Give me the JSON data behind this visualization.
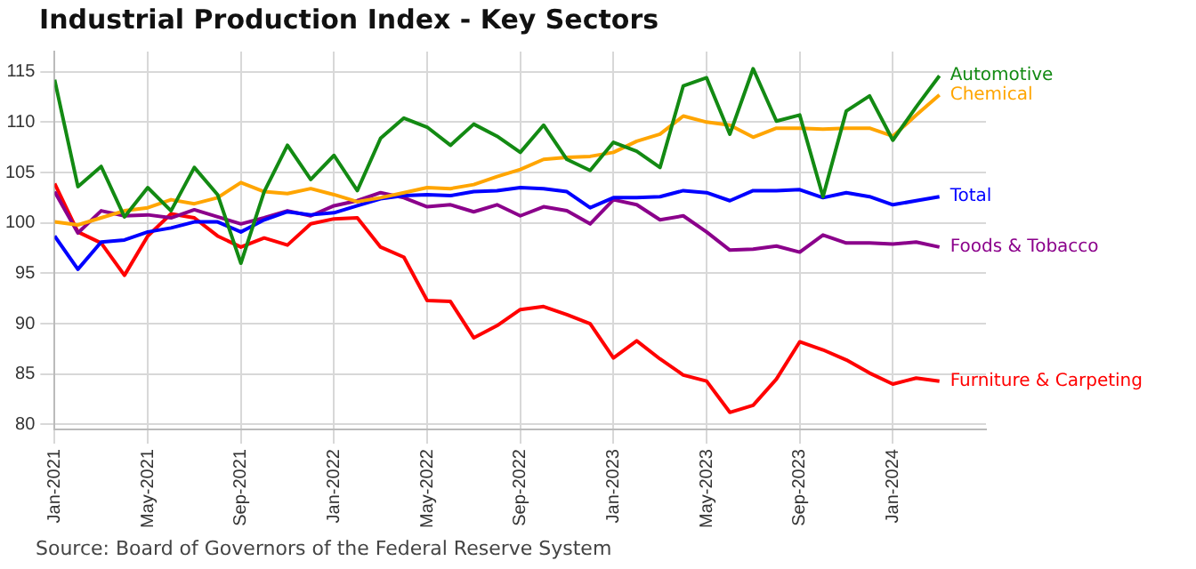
{
  "chart_data": {
    "type": "line",
    "title": "Industrial Production Index - Key Sectors",
    "x": [
      "2021-01",
      "2021-02",
      "2021-03",
      "2021-04",
      "2021-05",
      "2021-06",
      "2021-07",
      "2021-08",
      "2021-09",
      "2021-10",
      "2021-11",
      "2021-12",
      "2022-01",
      "2022-02",
      "2022-03",
      "2022-04",
      "2022-05",
      "2022-06",
      "2022-07",
      "2022-08",
      "2022-09",
      "2022-10",
      "2022-11",
      "2022-12",
      "2023-01",
      "2023-02",
      "2023-03",
      "2023-04",
      "2023-05",
      "2023-06",
      "2023-07",
      "2023-08",
      "2023-09",
      "2023-10",
      "2023-11",
      "2023-12",
      "2024-01",
      "2024-02",
      "2024-03"
    ],
    "series": [
      {
        "name": "Automotive",
        "color": "#138a13",
        "values": [
          114.2,
          103.6,
          105.6,
          100.6,
          103.5,
          101.2,
          105.5,
          102.8,
          96.0,
          103.1,
          107.7,
          104.3,
          106.7,
          103.2,
          108.4,
          110.4,
          109.5,
          107.7,
          109.8,
          108.6,
          107.0,
          109.7,
          106.3,
          105.2,
          108.0,
          107.1,
          105.5,
          113.6,
          114.4,
          108.8,
          115.3,
          110.1,
          110.7,
          102.6,
          111.1,
          112.6,
          108.2,
          111.5,
          114.6
        ]
      },
      {
        "name": "Chemical",
        "color": "#ffa500",
        "values": [
          100.1,
          99.8,
          100.5,
          101.2,
          101.5,
          102.3,
          101.9,
          102.5,
          104.0,
          103.1,
          102.9,
          103.4,
          102.8,
          102.1,
          102.5,
          103.0,
          103.5,
          103.4,
          103.8,
          104.6,
          105.3,
          106.3,
          106.5,
          106.6,
          107.0,
          108.1,
          108.8,
          110.6,
          110.0,
          109.7,
          108.5,
          109.4,
          109.4,
          109.3,
          109.4,
          109.4,
          108.6,
          110.7,
          112.7
        ]
      },
      {
        "name": "Total",
        "color": "#0000ff",
        "values": [
          98.7,
          95.4,
          98.1,
          98.3,
          99.1,
          99.5,
          100.1,
          100.1,
          99.1,
          100.3,
          101.1,
          100.8,
          101.0,
          101.7,
          102.4,
          102.7,
          102.8,
          102.7,
          103.1,
          103.2,
          103.5,
          103.4,
          103.1,
          101.5,
          102.5,
          102.5,
          102.6,
          103.2,
          103.0,
          102.2,
          103.2,
          103.2,
          103.3,
          102.5,
          103.0,
          102.6,
          101.8,
          102.2,
          102.6
        ]
      },
      {
        "name": "Foods & Tobacco",
        "color": "#8b008b",
        "values": [
          103.1,
          99.0,
          101.2,
          100.7,
          100.8,
          100.5,
          101.3,
          100.6,
          99.9,
          100.5,
          101.2,
          100.7,
          101.7,
          102.2,
          103.0,
          102.5,
          101.6,
          101.8,
          101.1,
          101.8,
          100.7,
          101.6,
          101.2,
          99.9,
          102.3,
          101.8,
          100.3,
          100.7,
          99.1,
          97.3,
          97.4,
          97.7,
          97.1,
          98.8,
          98.0,
          98.0,
          97.9,
          98.1,
          97.6
        ]
      },
      {
        "name": "Furniture & Carpeting",
        "color": "#ff0000",
        "values": [
          103.9,
          99.1,
          98.0,
          94.8,
          98.7,
          100.9,
          100.5,
          98.7,
          97.6,
          98.5,
          97.8,
          99.9,
          100.4,
          100.5,
          97.6,
          96.6,
          92.3,
          92.2,
          88.6,
          89.8,
          91.4,
          91.7,
          90.9,
          90.0,
          86.6,
          88.3,
          86.5,
          84.9,
          84.3,
          81.2,
          81.9,
          84.5,
          88.2,
          87.4,
          86.4,
          85.1,
          84.0,
          84.6,
          84.3
        ]
      }
    ],
    "xlim": [
      "2021-01",
      "2024-05"
    ],
    "xticks": [
      {
        "value": "2021-01",
        "label": "Jan-2021"
      },
      {
        "value": "2021-05",
        "label": "May-2021"
      },
      {
        "value": "2021-09",
        "label": "Sep-2021"
      },
      {
        "value": "2022-01",
        "label": "Jan-2022"
      },
      {
        "value": "2022-05",
        "label": "May-2022"
      },
      {
        "value": "2022-09",
        "label": "Sep-2022"
      },
      {
        "value": "2023-01",
        "label": "Jan-2023"
      },
      {
        "value": "2023-05",
        "label": "May-2023"
      },
      {
        "value": "2023-09",
        "label": "Sep-2023"
      },
      {
        "value": "2024-01",
        "label": "Jan-2024"
      }
    ],
    "ylim": [
      79.5,
      117
    ],
    "yticks": [
      80,
      85,
      90,
      95,
      100,
      105,
      110,
      115
    ],
    "grid": true,
    "legend": false,
    "marker": "none",
    "line_style": "solid",
    "annotations": [
      "Source: Board of Governors of the Federal Reserve System"
    ]
  }
}
